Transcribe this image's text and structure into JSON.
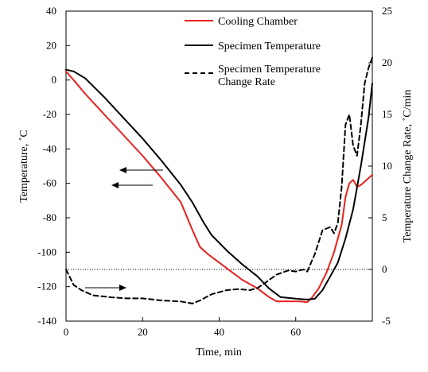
{
  "chart_data": {
    "type": "line",
    "xlabel": "Time, min",
    "ylabel_left": "Temperature, ˚C",
    "ylabel_right": "Temperature Change Rate, ˚C/min",
    "xlim": [
      0,
      80
    ],
    "ylim_left": [
      -140,
      40
    ],
    "ylim_right": [
      -5,
      25
    ],
    "x_ticks": [
      "0",
      "20",
      "40",
      "60"
    ],
    "y_left_ticks": [
      "40",
      "20",
      "0",
      "-20",
      "-40",
      "-60",
      "-80",
      "-100",
      "-120",
      "-140"
    ],
    "y_right_ticks": [
      "25",
      "20",
      "15",
      "10",
      "5",
      "0",
      "-5"
    ],
    "grid": false,
    "legend_position": "top-right",
    "reference_line": {
      "axis": "right",
      "y": 0,
      "style": "dotted"
    },
    "series": [
      {
        "name": "Cooling Chamber",
        "axis": "left",
        "color": "#e8211c",
        "style": "solid",
        "points": [
          [
            0,
            5
          ],
          [
            2,
            0
          ],
          [
            5,
            -8
          ],
          [
            10,
            -20
          ],
          [
            15,
            -32
          ],
          [
            20,
            -44
          ],
          [
            25,
            -57
          ],
          [
            30,
            -71
          ],
          [
            33,
            -87
          ],
          [
            35,
            -97
          ],
          [
            37,
            -101
          ],
          [
            40,
            -106
          ],
          [
            43,
            -111
          ],
          [
            46,
            -116
          ],
          [
            50,
            -121
          ],
          [
            53,
            -126
          ],
          [
            55,
            -128.5
          ],
          [
            58,
            -128.5
          ],
          [
            61,
            -128.5
          ],
          [
            63,
            -129
          ],
          [
            64,
            -127
          ],
          [
            66,
            -121
          ],
          [
            68,
            -112
          ],
          [
            70,
            -100
          ],
          [
            72,
            -84
          ],
          [
            73,
            -68
          ],
          [
            74,
            -60
          ],
          [
            75,
            -58
          ],
          [
            76,
            -62
          ],
          [
            77,
            -61
          ],
          [
            78,
            -59
          ],
          [
            79,
            -57
          ],
          [
            80,
            -55
          ]
        ]
      },
      {
        "name": "Specimen Temperature",
        "axis": "left",
        "color": "#000000",
        "style": "solid",
        "points": [
          [
            0,
            6
          ],
          [
            2,
            5
          ],
          [
            5,
            1
          ],
          [
            10,
            -10
          ],
          [
            15,
            -22
          ],
          [
            20,
            -34
          ],
          [
            25,
            -47
          ],
          [
            30,
            -61
          ],
          [
            33,
            -71
          ],
          [
            36,
            -83
          ],
          [
            38,
            -90
          ],
          [
            42,
            -99
          ],
          [
            46,
            -107
          ],
          [
            50,
            -114
          ],
          [
            53,
            -121
          ],
          [
            56,
            -126
          ],
          [
            60,
            -127
          ],
          [
            63,
            -127.5
          ],
          [
            65,
            -127
          ],
          [
            67,
            -122
          ],
          [
            69,
            -114
          ],
          [
            71,
            -106
          ],
          [
            73,
            -92
          ],
          [
            75,
            -75
          ],
          [
            77,
            -50
          ],
          [
            79,
            -22
          ],
          [
            80,
            -2
          ]
        ]
      },
      {
        "name": "Specimen Temperature Change Rate",
        "axis": "right",
        "color": "#000000",
        "style": "dashed",
        "points": [
          [
            0,
            0
          ],
          [
            2,
            -1.5
          ],
          [
            4,
            -2
          ],
          [
            7,
            -2.5
          ],
          [
            12,
            -2.7
          ],
          [
            16,
            -2.8
          ],
          [
            20,
            -2.8
          ],
          [
            25,
            -3
          ],
          [
            30,
            -3.1
          ],
          [
            33,
            -3.3
          ],
          [
            35,
            -3
          ],
          [
            38,
            -2.4
          ],
          [
            42,
            -2
          ],
          [
            45,
            -1.9
          ],
          [
            48,
            -2
          ],
          [
            50,
            -1.8
          ],
          [
            52,
            -1.3
          ],
          [
            55,
            -0.5
          ],
          [
            58,
            -0.1
          ],
          [
            60,
            -0.2
          ],
          [
            62,
            0
          ],
          [
            63,
            -0.2
          ],
          [
            65,
            1.5
          ],
          [
            67,
            3.8
          ],
          [
            69,
            4.1
          ],
          [
            70,
            3.5
          ],
          [
            71,
            4.5
          ],
          [
            72,
            8
          ],
          [
            73,
            14
          ],
          [
            74,
            15
          ],
          [
            75,
            12
          ],
          [
            76,
            11
          ],
          [
            77,
            14
          ],
          [
            78,
            18
          ],
          [
            79,
            19.5
          ],
          [
            80,
            20.5
          ]
        ]
      }
    ],
    "legend": {
      "cooling_label": "Cooling Chamber",
      "specimen_label": "Specimen Temperature",
      "rate_label_line1": "Specimen Temperature",
      "rate_label_line2": "Change Rate"
    }
  }
}
